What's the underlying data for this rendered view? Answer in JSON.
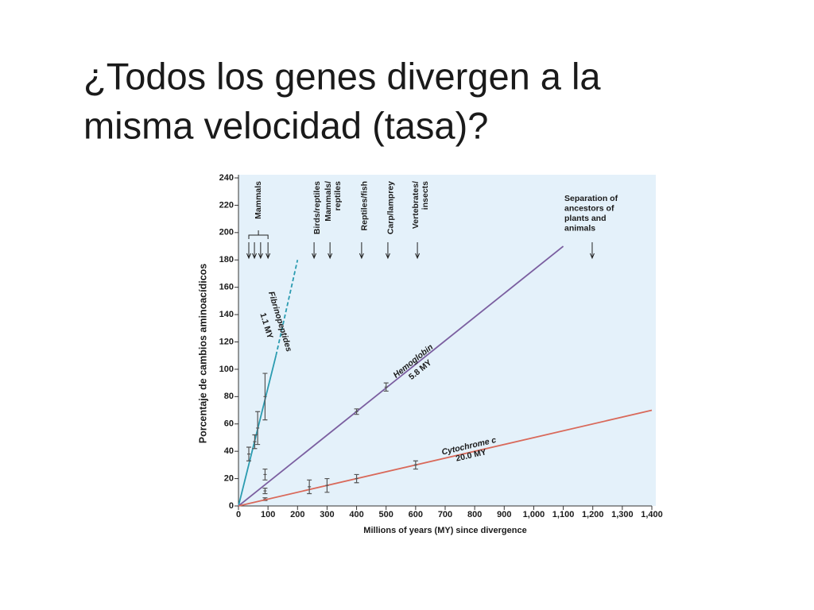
{
  "chart_data": {
    "type": "line",
    "title_lines": [
      "¿Todos los genes divergen a la",
      "misma velocidad (tasa)?"
    ],
    "x_label": "Millions of years (MY) since divergence",
    "y_label": "Porcentaje de cambios aminoacídicos",
    "xlim": [
      0,
      1400
    ],
    "ylim": [
      0,
      240
    ],
    "xticks": [
      0,
      100,
      200,
      300,
      400,
      500,
      600,
      700,
      800,
      900,
      {
        "value": 1000,
        "label": "1,000"
      },
      {
        "value": 1100,
        "label": "1,100"
      },
      {
        "value": 1200,
        "label": "1,200"
      },
      {
        "value": 1300,
        "label": "1,300"
      },
      {
        "value": 1400,
        "label": "1,400"
      }
    ],
    "yticks": [
      0,
      20,
      40,
      60,
      80,
      100,
      120,
      140,
      160,
      180,
      200,
      220,
      240
    ],
    "background": "#e4f1fa",
    "series": [
      {
        "name": "Fibrinopeptides",
        "rate_label": "1.1 MY",
        "color": "#2a9bb0",
        "x": [
          0,
          127
        ],
        "values": [
          0,
          110
        ],
        "extension": {
          "x": [
            127,
            200
          ],
          "values": [
            110,
            180
          ]
        },
        "points": {
          "x": [
            35,
            55,
            65,
            90
          ],
          "values": [
            38,
            47,
            57,
            80
          ],
          "errors": [
            5,
            5,
            12,
            17
          ]
        }
      },
      {
        "name": "Hemoglobin",
        "rate_label": "5.8 MY",
        "color": "#7b5fa0",
        "x": [
          0,
          1100
        ],
        "values": [
          0,
          190
        ],
        "points": {
          "x": [
            90,
            90,
            90,
            400,
            500
          ],
          "values": [
            5,
            11,
            23,
            69,
            87
          ],
          "errors": [
            1,
            2,
            4,
            2,
            3
          ]
        }
      },
      {
        "name": "Cytochrome c",
        "rate_label": "20.0 MY",
        "color": "#d9695a",
        "x": [
          0,
          1400
        ],
        "values": [
          0,
          70
        ],
        "points": {
          "x": [
            240,
            300,
            400,
            600
          ],
          "values": [
            14,
            15,
            20,
            30
          ],
          "errors": [
            5,
            5,
            3,
            3
          ]
        }
      }
    ],
    "events": [
      {
        "lines": [
          "Mammals"
        ],
        "x": [
          35,
          54,
          75,
          100
        ]
      },
      {
        "lines": [
          "Birds/reptiles"
        ],
        "x": [
          256
        ]
      },
      {
        "lines": [
          "Mammals/",
          "reptiles"
        ],
        "x": [
          310
        ]
      },
      {
        "lines": [
          "Reptiles/fish"
        ],
        "x": [
          417
        ]
      },
      {
        "lines": [
          "Carp/lamprey"
        ],
        "x": [
          506
        ]
      },
      {
        "lines": [
          "Vertebrates/",
          "insects"
        ],
        "x": [
          606
        ]
      },
      {
        "lines": [
          "Separation of",
          "ancestors of",
          "plants and",
          "animals"
        ],
        "x": [
          1198
        ],
        "horizontal": true
      }
    ]
  }
}
